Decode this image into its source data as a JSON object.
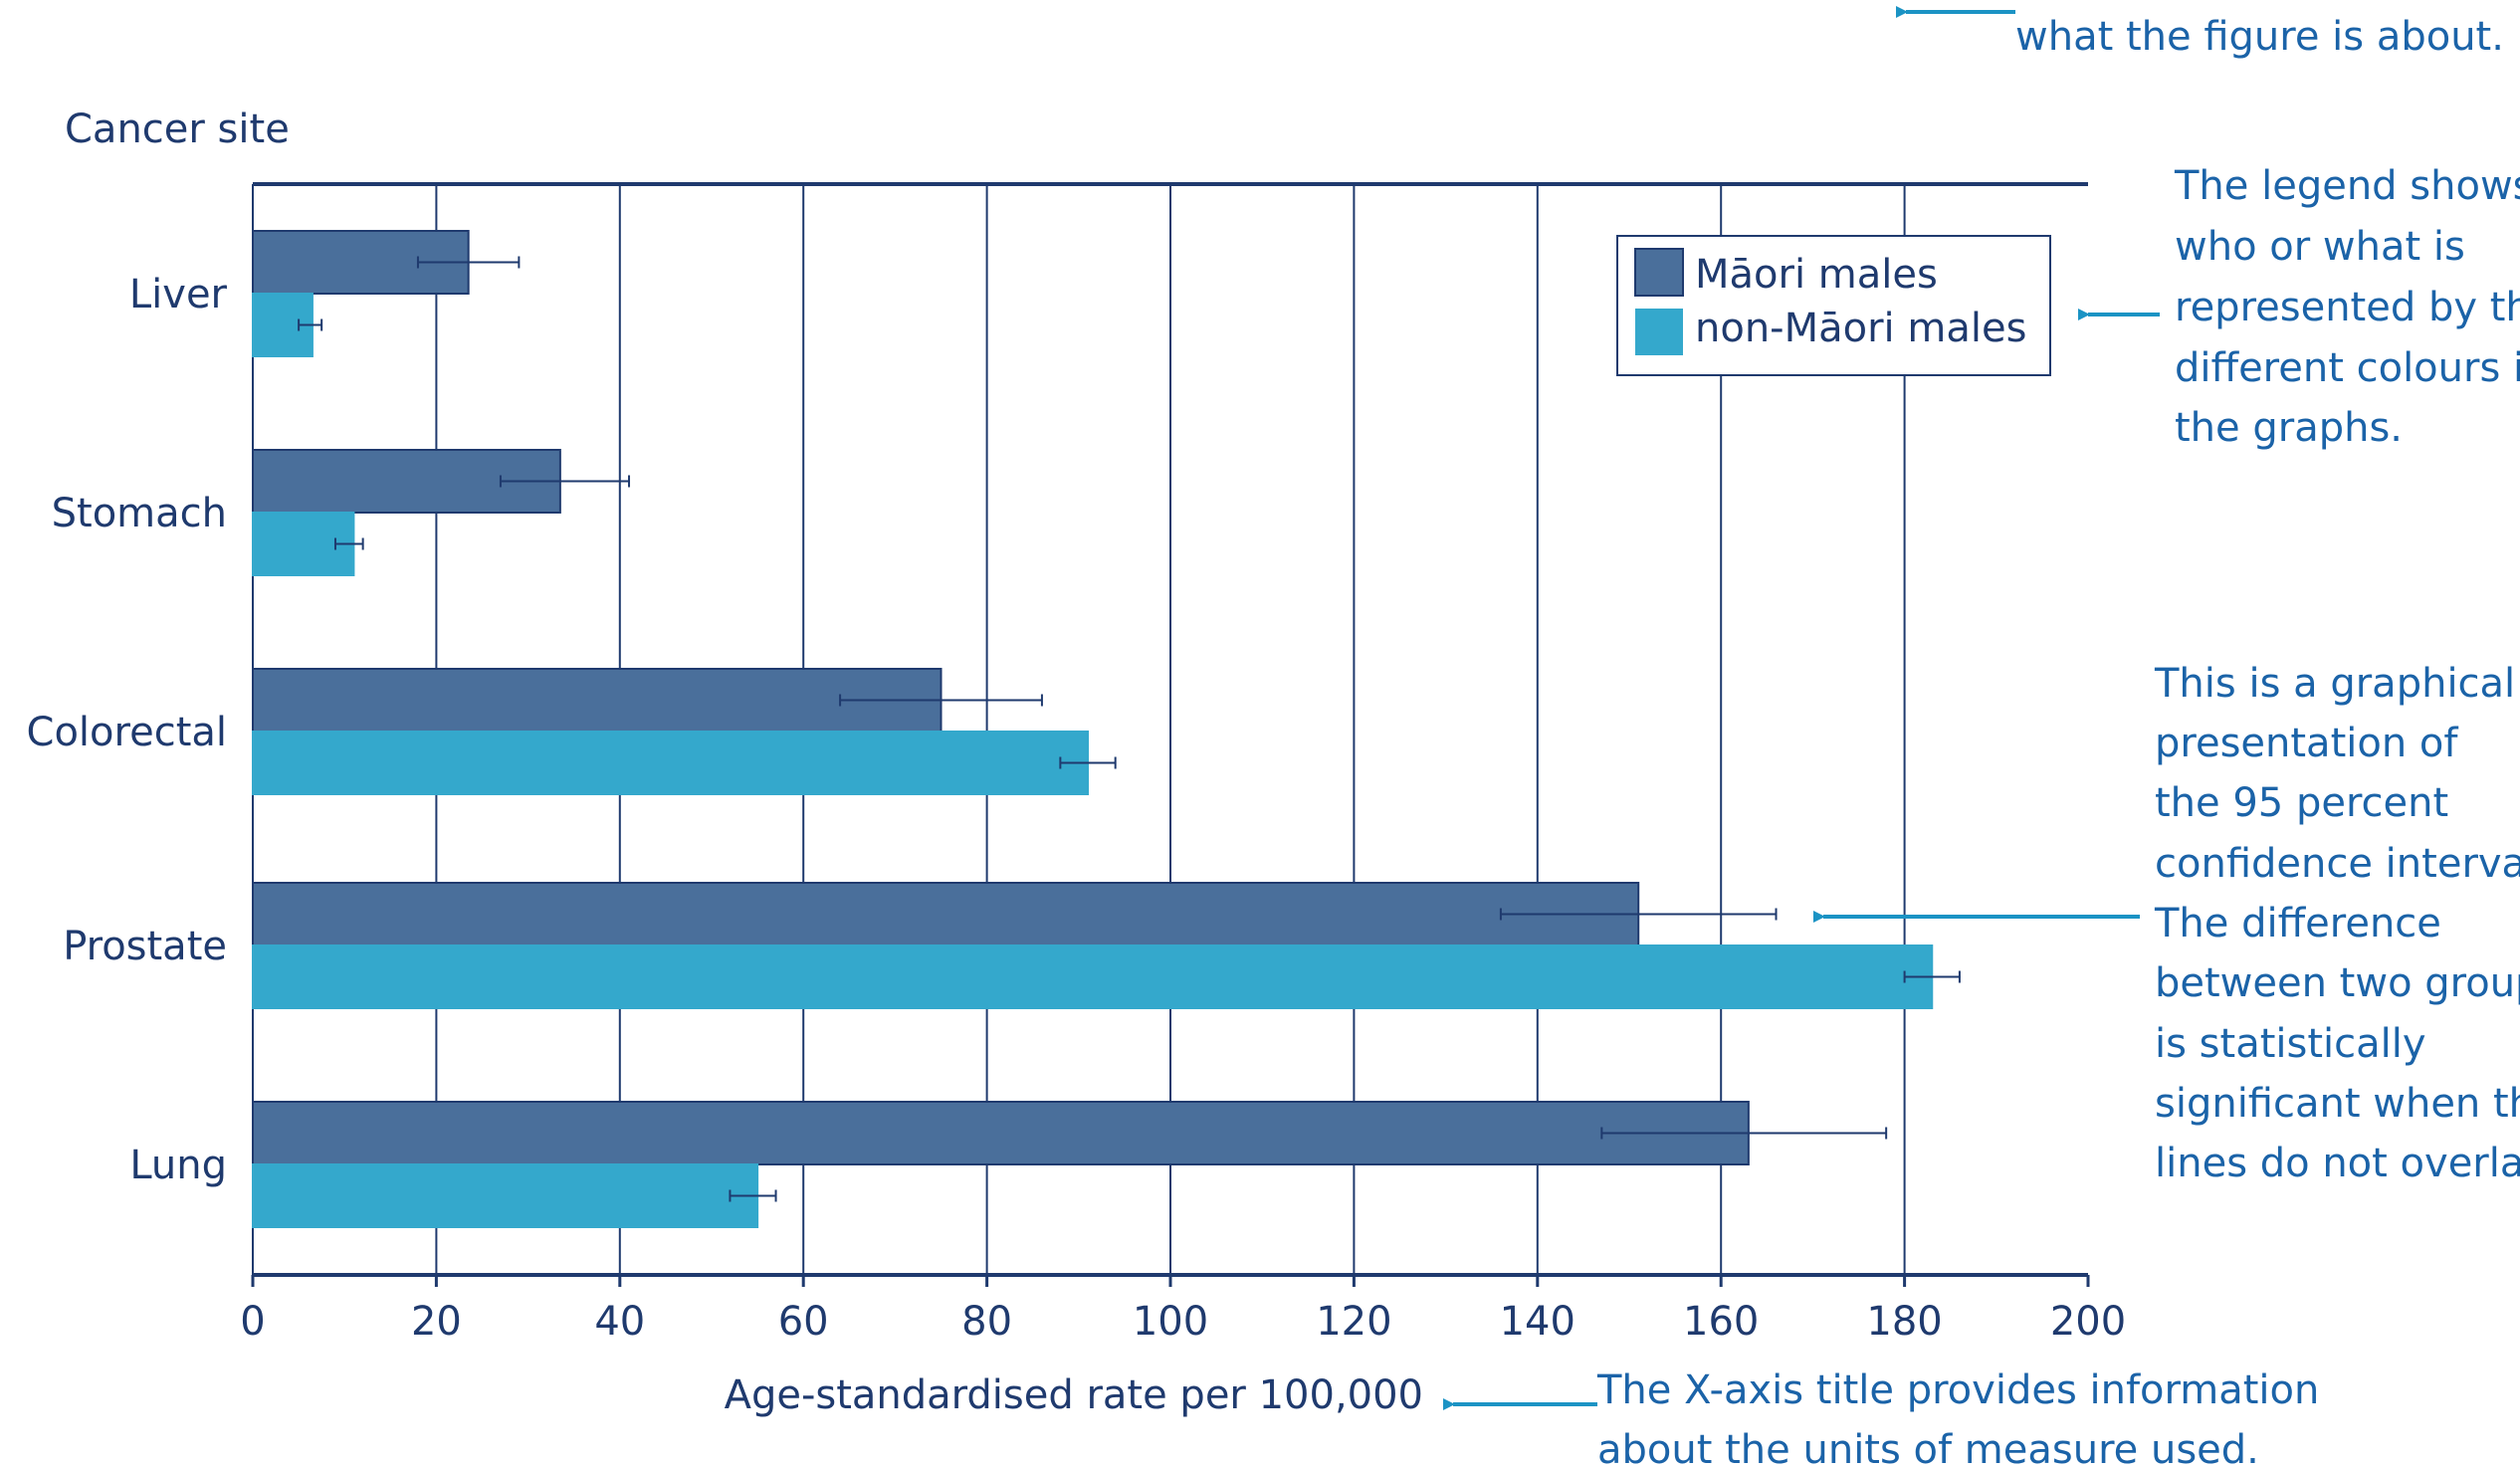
{
  "chart_data": {
    "type": "bar",
    "orientation": "horizontal",
    "y_axis_title": "Cancer site",
    "x_axis_title": "Age-standardised rate per 100,000",
    "categories": [
      "Liver",
      "Stomach",
      "Colorectal",
      "Prostate",
      "Lung"
    ],
    "series": [
      {
        "name": "Māori males",
        "color": "#4a6f9b",
        "values": [
          23.5,
          33.5,
          75,
          151,
          163
        ],
        "ci_low": [
          18,
          27,
          64,
          136,
          147
        ],
        "ci_high": [
          29,
          41,
          86,
          166,
          178
        ]
      },
      {
        "name": "non-Māori males",
        "color": "#34a8cc",
        "values": [
          6.5,
          11,
          91,
          183,
          55
        ],
        "ci_low": [
          5,
          9,
          88,
          180,
          52
        ],
        "ci_high": [
          7.5,
          12,
          94,
          186,
          57
        ]
      }
    ],
    "xlim": [
      0,
      200
    ],
    "xticks": [
      0,
      20,
      40,
      60,
      80,
      100,
      120,
      140,
      160,
      180,
      200
    ],
    "grid": "vertical",
    "legend_position": "top-right"
  },
  "annotations": {
    "title_note": "what the figure is about.",
    "legend_note": [
      "The legend shows",
      "who or  what is",
      "represented by the",
      "different colours in",
      "the graphs."
    ],
    "ci_note": [
      "This is a graphical",
      "presentation of",
      "the 95 percent",
      "confidence interval.",
      "The difference",
      "between two groups",
      "is statistically",
      "significant when the",
      "lines do not overlap."
    ],
    "xaxis_note": [
      "The X-axis title provides information",
      "about the units of measure used."
    ]
  },
  "colors": {
    "axis": "#1f3a6e",
    "annotation": "#1b63a8",
    "arrow": "#1b93c4"
  }
}
